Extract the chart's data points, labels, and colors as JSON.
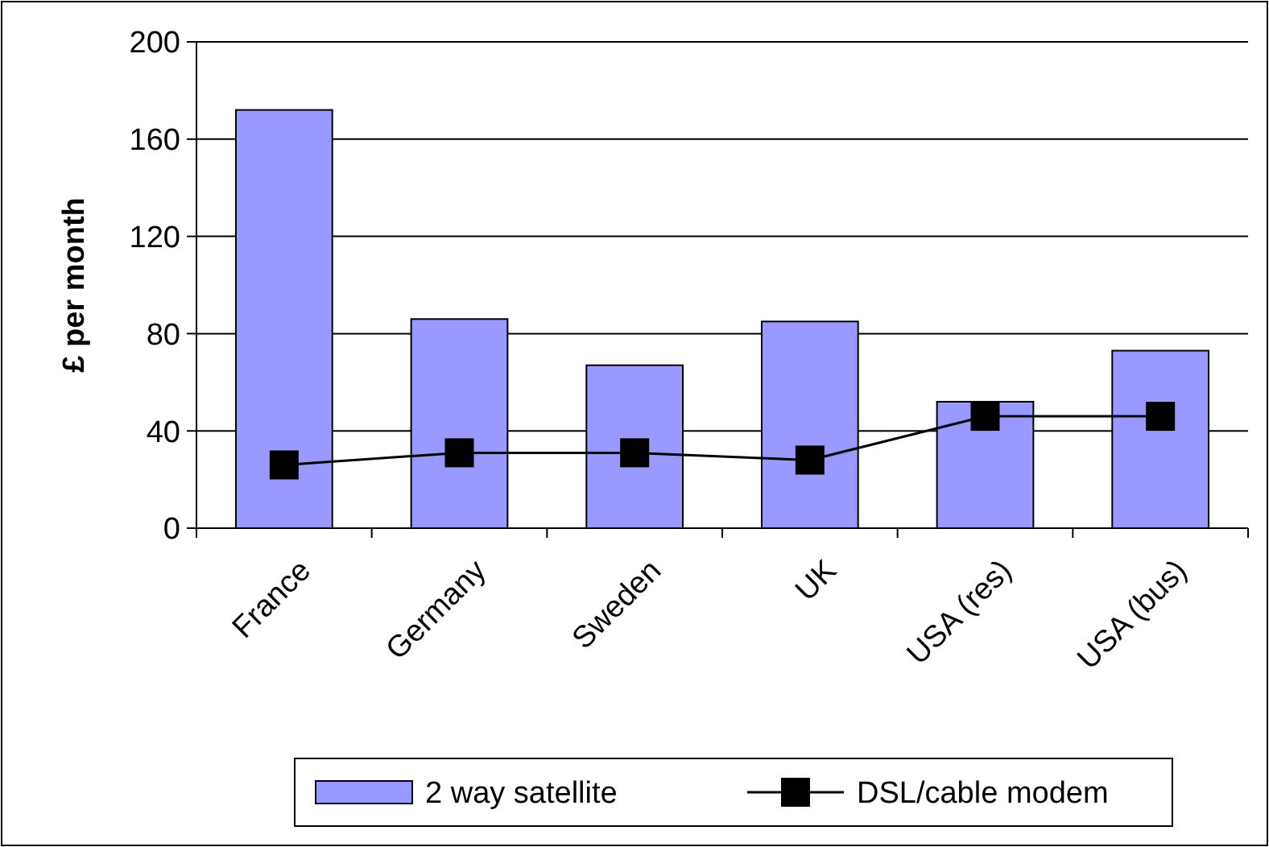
{
  "chart_data": {
    "type": "bar",
    "ylabel": "£ per month",
    "categories": [
      "France",
      "Germany",
      "Sweden",
      "UK",
      "USA (res)",
      "USA (bus)"
    ],
    "series": [
      {
        "name": "2 way satellite",
        "color": "#9999ff",
        "values": [
          172,
          86,
          67,
          85,
          52,
          73
        ]
      },
      {
        "name": "DSL/cable modem",
        "type": "line",
        "color": "#000000",
        "values": [
          26,
          31,
          31,
          28,
          46,
          46
        ]
      }
    ],
    "ylim": [
      0,
      200
    ],
    "yticks": [
      0,
      40,
      80,
      120,
      160,
      200
    ],
    "grid": "y",
    "legend": "bottom",
    "marker": "square"
  }
}
